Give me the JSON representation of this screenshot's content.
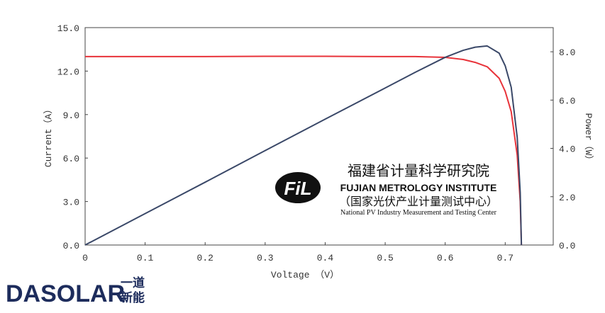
{
  "chart_data": {
    "type": "line",
    "x_label": "Voltage （V）",
    "y_label": "Current（A）",
    "y2_label": "Power（W）",
    "x": [
      0,
      0.1,
      0.2,
      0.3,
      0.4,
      0.5,
      0.55,
      0.6,
      0.63,
      0.65,
      0.67,
      0.69,
      0.7,
      0.71,
      0.72,
      0.725,
      0.727
    ],
    "series": [
      {
        "name": "Current",
        "color": "#e8333a",
        "values": [
          13.0,
          13.0,
          13.0,
          13.02,
          13.02,
          13.0,
          13.0,
          12.95,
          12.8,
          12.6,
          12.3,
          11.5,
          10.6,
          9.2,
          6.2,
          3.0,
          0
        ]
      },
      {
        "name": "Power",
        "color": "#3a4868",
        "axis": "y2",
        "values": [
          0,
          1.3,
          2.6,
          3.91,
          5.21,
          6.5,
          7.15,
          7.77,
          8.06,
          8.19,
          8.24,
          7.94,
          7.42,
          6.53,
          4.46,
          2.18,
          0
        ]
      }
    ],
    "xlim": [
      0,
      0.78
    ],
    "xticks": [
      0,
      0.1,
      0.2,
      0.3,
      0.4,
      0.5,
      0.6,
      0.7
    ],
    "ylim": [
      0,
      15
    ],
    "yticks": [
      {
        "value": 0,
        "label": "0.0"
      },
      {
        "value": 3,
        "label": "3.0"
      },
      {
        "value": 6,
        "label": "6.0"
      },
      {
        "value": 9,
        "label": "9.0"
      },
      {
        "value": 12,
        "label": "12.0"
      },
      {
        "value": 15,
        "label": "15.0"
      }
    ],
    "y2lim": [
      0,
      9
    ],
    "y2ticks": [
      {
        "value": 0,
        "label": "0.0"
      },
      {
        "value": 2,
        "label": "2.0"
      },
      {
        "value": 4,
        "label": "4.0"
      },
      {
        "value": 6,
        "label": "6.0"
      },
      {
        "value": 8,
        "label": "8.0"
      }
    ],
    "annotations": [
      "福建省计量科学研究院",
      "FUJIAN METROLOGY INSTITUTE",
      "（国家光伏产业计量测试中心）",
      "National PV Industry Measurement and Testing Center"
    ],
    "logo": "FiL",
    "brand": {
      "name": "DASOLAR",
      "line1": "一道",
      "line2": "新能"
    }
  }
}
